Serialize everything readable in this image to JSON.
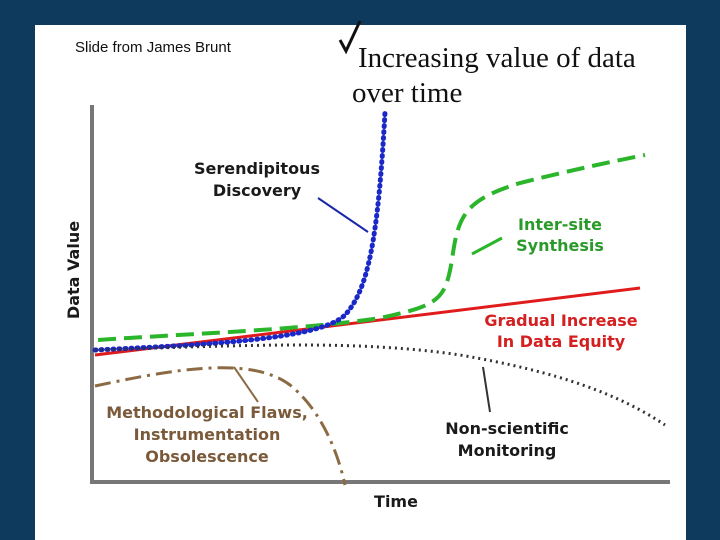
{
  "credit": "Slide from James Brunt",
  "title": {
    "lines": [
      "Increasing value of data",
      "over time"
    ]
  },
  "axes": {
    "y_label": "Data Value",
    "x_label": "Time"
  },
  "annotations": {
    "serendipitous": [
      "Serendipitous",
      "Discovery"
    ],
    "synthesis": [
      "Inter-site",
      "Synthesis"
    ],
    "equity": [
      "Gradual Increase",
      "In Data Equity"
    ],
    "flaws": [
      "Methodological Flaws,",
      "Instrumentation",
      "Obsolescence"
    ],
    "monitoring": [
      "Non-scientific",
      "Monitoring"
    ]
  }
}
